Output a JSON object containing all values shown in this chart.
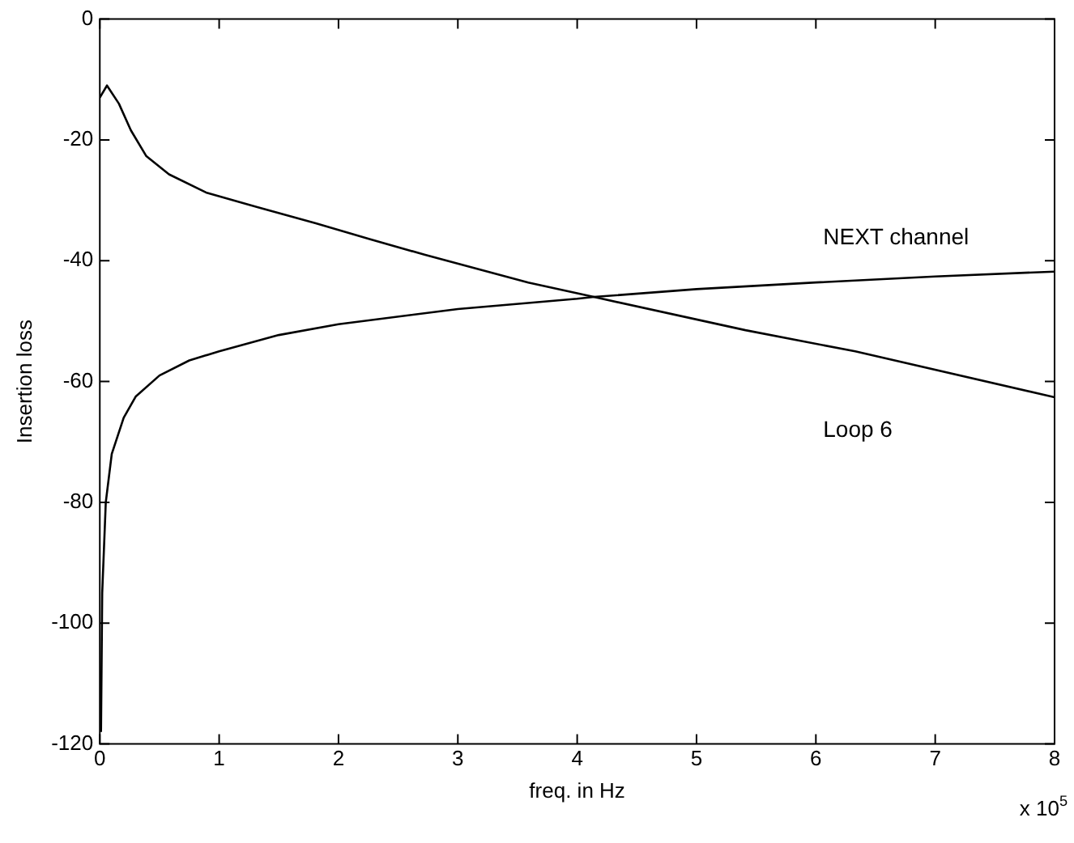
{
  "chart_data": {
    "type": "line",
    "xlabel": "freq. in Hz",
    "ylabel": "Insertion loss",
    "xlim": [
      0,
      8
    ],
    "xticks": [
      0,
      1,
      2,
      3,
      4,
      5,
      6,
      7,
      8
    ],
    "ylim": [
      -120,
      0
    ],
    "yticks": [
      -120,
      -100,
      -80,
      -60,
      -40,
      -20,
      0
    ],
    "annotations": [
      "x 10$^{5}$"
    ],
    "marker": "none",
    "line_style": "solid",
    "legend": false,
    "series": [
      {
        "name": "NEXT channel",
        "color": "#000000",
        "x": [
          0.01,
          0.02,
          0.05,
          0.1,
          0.2,
          0.3,
          0.5,
          0.75,
          1,
          1.5,
          2,
          3,
          4,
          4.14,
          5,
          6,
          7,
          8
        ],
        "values": [
          -118,
          -95,
          -80,
          -72,
          -66,
          -62.5,
          -59,
          -56.5,
          -55,
          -52.3,
          -50.5,
          -48,
          -46.3,
          -46,
          -44.7,
          -43.6,
          -42.6,
          -41.8
        ]
      },
      {
        "name": "Loop 6",
        "color": "#000000",
        "x": [
          0,
          0.06,
          0.16,
          0.26,
          0.39,
          0.58,
          0.89,
          1.35,
          1.81,
          2.26,
          2.72,
          3.59,
          4.14,
          5.41,
          6.33,
          8
        ],
        "values": [
          -13,
          -11,
          -14,
          -18.4,
          -22.7,
          -25.7,
          -28.7,
          -31.3,
          -33.8,
          -36.4,
          -39,
          -43.6,
          -46,
          -51.5,
          -55,
          -62.6
        ]
      }
    ]
  }
}
